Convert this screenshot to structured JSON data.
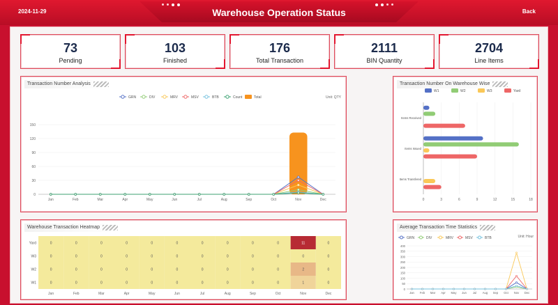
{
  "header": {
    "date": "2024-11-29",
    "title": "Warehouse Operation Status",
    "back_label": "Back"
  },
  "stats": [
    {
      "value": "73",
      "label": "Pending"
    },
    {
      "value": "103",
      "label": "Finished"
    },
    {
      "value": "176",
      "label": "Total Transaction"
    },
    {
      "value": "2111",
      "label": "BIN Quantity"
    },
    {
      "value": "2704",
      "label": "Line Items"
    }
  ],
  "colors": {
    "accent": "#e3162f",
    "GRN": "#5470c6",
    "DIV": "#91cc75",
    "MRV": "#fac858",
    "MSV": "#ee6666",
    "BTB": "#73c0de",
    "Count": "#3ba272",
    "Total": "#f7931e",
    "W1": "#5470c6",
    "W2": "#91cc75",
    "W3": "#fac858",
    "Yard": "#ee6666"
  },
  "panels": {
    "transaction_analysis": {
      "title": "Transaction Number Analysis",
      "unit": "Unit: QTY"
    },
    "warehouse_wise": {
      "title": "Transaction Number On Warehouse Wise"
    },
    "heatmap": {
      "title": "Warehouse Transaction Heatmap"
    },
    "avg_time": {
      "title": "Average Transaction Time Statistics",
      "unit": "Unit: Hour"
    }
  },
  "chart_data": [
    {
      "type": "line",
      "title": "Transaction Number Analysis",
      "unit": "Unit: QTY",
      "categories": [
        "Jan",
        "Feb",
        "Mar",
        "Apr",
        "May",
        "Jun",
        "Jul",
        "Aug",
        "Sep",
        "Oct",
        "Nov",
        "Dec"
      ],
      "ylim": [
        0,
        150
      ],
      "yticks": [
        0,
        30,
        60,
        90,
        120,
        150
      ],
      "legend": [
        "GRN",
        "DIV",
        "MRV",
        "MSV",
        "BTB",
        "Count",
        "Total"
      ],
      "series": [
        {
          "name": "GRN",
          "values": [
            0,
            0,
            0,
            0,
            0,
            0,
            0,
            0,
            0,
            0,
            37,
            0
          ]
        },
        {
          "name": "DIV",
          "values": [
            0,
            0,
            0,
            0,
            0,
            0,
            0,
            0,
            0,
            0,
            10,
            0
          ]
        },
        {
          "name": "MRV",
          "values": [
            0,
            0,
            0,
            0,
            0,
            0,
            0,
            0,
            0,
            0,
            20,
            0
          ]
        },
        {
          "name": "MSV",
          "values": [
            0,
            0,
            0,
            0,
            0,
            0,
            0,
            0,
            0,
            0,
            30,
            0
          ]
        },
        {
          "name": "BTB",
          "values": [
            0,
            0,
            0,
            0,
            0,
            0,
            0,
            0,
            0,
            0,
            5,
            0
          ]
        },
        {
          "name": "Count",
          "values": [
            0,
            0,
            0,
            0,
            0,
            0,
            0,
            0,
            0,
            0,
            3,
            0
          ]
        },
        {
          "name": "Total",
          "chart": "bar",
          "values": [
            0,
            0,
            0,
            0,
            0,
            0,
            0,
            0,
            0,
            0,
            133,
            0
          ]
        }
      ]
    },
    {
      "type": "bar",
      "orientation": "horizontal",
      "title": "Transaction Number On Warehouse Wise",
      "categories": [
        "Items Received",
        "Items Issued",
        "Items Transfered"
      ],
      "xlim": [
        0,
        18
      ],
      "xticks": [
        0,
        3,
        6,
        9,
        12,
        15,
        18
      ],
      "legend": [
        "W1",
        "W2",
        "W3",
        "Yard"
      ],
      "series": [
        {
          "name": "W1",
          "values": [
            1,
            10,
            0
          ]
        },
        {
          "name": "W2",
          "values": [
            2,
            16,
            0
          ]
        },
        {
          "name": "W3",
          "values": [
            0,
            1,
            2
          ]
        },
        {
          "name": "Yard",
          "values": [
            7,
            9,
            3
          ]
        }
      ]
    },
    {
      "type": "heatmap",
      "title": "Warehouse Transaction Heatmap",
      "x": [
        "Jan",
        "Feb",
        "Mar",
        "Apr",
        "May",
        "Jun",
        "Jul",
        "Aug",
        "Sep",
        "Oct",
        "Nov",
        "Dec"
      ],
      "y": [
        "Yard",
        "W3",
        "W2",
        "W1"
      ],
      "values": [
        [
          0,
          0,
          0,
          0,
          0,
          0,
          0,
          0,
          0,
          0,
          11,
          0
        ],
        [
          0,
          0,
          0,
          0,
          0,
          0,
          0,
          0,
          0,
          0,
          0,
          0
        ],
        [
          0,
          0,
          0,
          0,
          0,
          0,
          0,
          0,
          0,
          0,
          2,
          0
        ],
        [
          0,
          0,
          0,
          0,
          0,
          0,
          0,
          0,
          0,
          0,
          1,
          0
        ]
      ]
    },
    {
      "type": "line",
      "title": "Average Transaction Time Statistics",
      "unit": "Unit: Hour",
      "categories": [
        "Jan",
        "Feb",
        "Mar",
        "Apr",
        "May",
        "Jun",
        "Jul",
        "Aug",
        "Sep",
        "Oct",
        "Nov",
        "Dec"
      ],
      "ylim": [
        0,
        400
      ],
      "yticks": [
        0,
        50,
        100,
        150,
        200,
        250,
        300,
        350,
        400
      ],
      "legend": [
        "GRN",
        "DIV",
        "MRV",
        "MSV",
        "BTB"
      ],
      "series": [
        {
          "name": "GRN",
          "values": [
            0,
            0,
            0,
            0,
            0,
            0,
            0,
            0,
            0,
            0,
            60,
            0
          ]
        },
        {
          "name": "DIV",
          "values": [
            0,
            0,
            0,
            0,
            0,
            0,
            0,
            0,
            0,
            0,
            20,
            0
          ]
        },
        {
          "name": "MRV",
          "values": [
            0,
            0,
            0,
            0,
            0,
            0,
            0,
            0,
            0,
            0,
            335,
            0
          ]
        },
        {
          "name": "MSV",
          "values": [
            0,
            0,
            0,
            0,
            0,
            0,
            0,
            0,
            0,
            0,
            120,
            0
          ]
        },
        {
          "name": "BTB",
          "values": [
            0,
            0,
            0,
            0,
            0,
            0,
            0,
            0,
            0,
            0,
            30,
            0
          ]
        }
      ]
    }
  ]
}
